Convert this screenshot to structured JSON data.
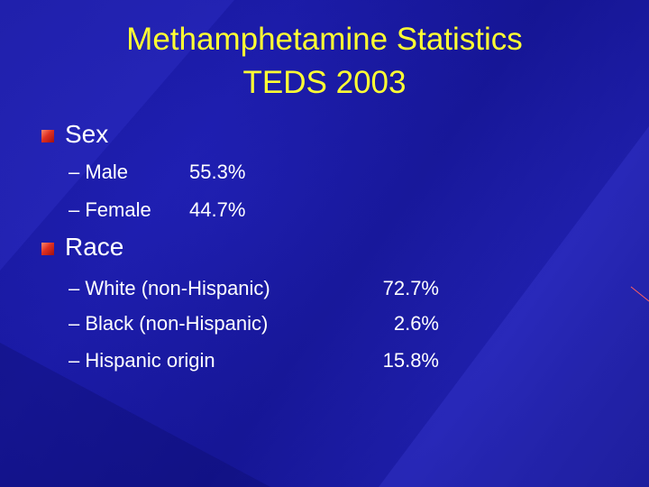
{
  "title": [
    "Methamphetamine Statistics",
    "TEDS 2003"
  ],
  "sections": [
    {
      "heading": "Sex",
      "items": [
        {
          "label": "Male",
          "value": "55.3%"
        },
        {
          "label": "Female",
          "value": "44.7%"
        }
      ]
    },
    {
      "heading": "Race",
      "items": [
        {
          "label": "White (non-Hispanic)",
          "value": "72.7%"
        },
        {
          "label": "Black (non-Hispanic)",
          "value": "2.6%"
        },
        {
          "label": "Hispanic origin",
          "value": "15.8%"
        }
      ]
    }
  ]
}
